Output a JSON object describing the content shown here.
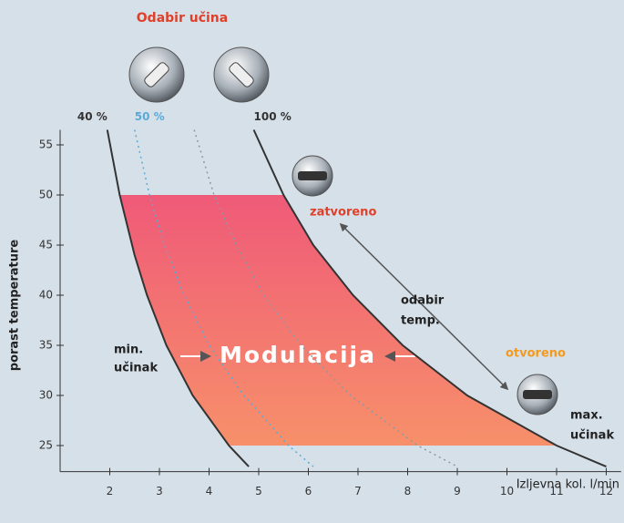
{
  "chart_data": {
    "type": "line",
    "title": "Odabir učina",
    "y_label": "porast temperature",
    "x_label": "Izljevna kol. l/min",
    "xlim": [
      1,
      12.3
    ],
    "ylim": [
      22.4,
      56.5
    ],
    "xticks": [
      2,
      3,
      4,
      5,
      6,
      7,
      8,
      9,
      10,
      11,
      12
    ],
    "yticks": [
      25,
      30,
      35,
      40,
      45,
      50,
      55
    ],
    "series": [
      {
        "name": "40 %",
        "color": "#333333",
        "style": "solid",
        "x": [
          1.95,
          2.2,
          2.5,
          2.75,
          3.14,
          3.67,
          4.4,
          4.8
        ],
        "values": [
          56.5,
          50,
          44,
          40,
          35,
          30,
          25,
          22.9
        ]
      },
      {
        "name": "50 %",
        "color": "#5aaad8",
        "style": "dotted",
        "x": [
          2.5,
          2.8,
          3.1,
          3.5,
          4.0,
          4.7,
          5.6,
          6.1
        ],
        "values": [
          56.5,
          50,
          45,
          40,
          35,
          30,
          25,
          22.9
        ]
      },
      {
        "color": "#8a9aa8",
        "style": "dotted",
        "x": [
          3.7,
          4.1,
          4.55,
          5.1,
          5.85,
          6.85,
          8.2,
          9.0
        ],
        "values": [
          56.5,
          50,
          45,
          40,
          35,
          30,
          25,
          22.9
        ]
      },
      {
        "name": "100 %",
        "color": "#333333",
        "style": "solid",
        "x": [
          4.9,
          5.5,
          6.1,
          6.9,
          7.9,
          9.2,
          11.0,
          12.0
        ],
        "values": [
          56.5,
          50,
          45,
          40,
          35,
          30,
          25,
          22.9
        ]
      }
    ],
    "band": {
      "label": "Modulacija",
      "ymin": 25,
      "ymax": 50
    },
    "annotations": {
      "closed": "zatvoreno",
      "open": "otvoreno",
      "temp": [
        "odabir",
        "temp."
      ],
      "min": [
        "min.",
        "učinak"
      ],
      "max": [
        "max.",
        "učinak"
      ]
    }
  }
}
